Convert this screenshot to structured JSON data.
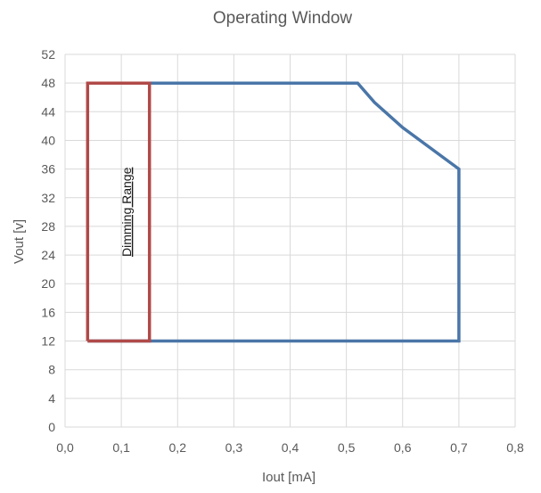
{
  "chart_data": {
    "type": "line",
    "title": "Operating Window",
    "xlabel": "Iout [mA]",
    "ylabel": "Vout [v]",
    "xlim": [
      0,
      0.8
    ],
    "ylim": [
      0,
      52
    ],
    "x_ticks": [
      "0,0",
      "0,1",
      "0,2",
      "0,3",
      "0,4",
      "0,5",
      "0,6",
      "0,7",
      "0,8"
    ],
    "y_ticks": [
      "0",
      "4",
      "8",
      "12",
      "16",
      "20",
      "24",
      "28",
      "32",
      "36",
      "40",
      "44",
      "48",
      "52"
    ],
    "grid": true,
    "legend": "none",
    "series": [
      {
        "color": "#4a76a8",
        "x": [
          0.04,
          0.52,
          0.55,
          0.6,
          0.7,
          0.7,
          0.04
        ],
        "y": [
          48,
          48,
          45.3,
          41.8,
          36,
          12,
          12
        ]
      },
      {
        "color": "#b04a48",
        "x": [
          0.04,
          0.15,
          0.15,
          0.04,
          0.04
        ],
        "y": [
          12,
          12,
          48,
          48,
          12
        ]
      }
    ],
    "annotations": [
      {
        "text": "Dimming Range",
        "x": 0.117,
        "y": 30
      }
    ]
  }
}
